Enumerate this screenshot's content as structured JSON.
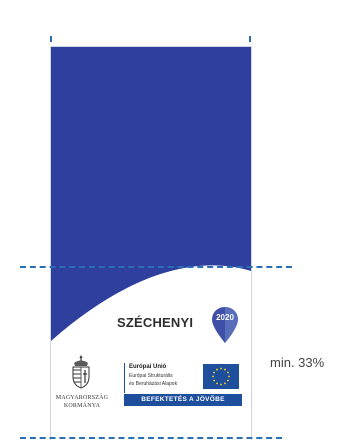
{
  "colors": {
    "poster_blue": "#2e3f9e",
    "guide_blue": "#2a6fb3",
    "eu_blue": "#1d4f9c",
    "eu_stars": "#ffd617",
    "pin_blue": "#3e4fa8",
    "pin_light": "#6f89c8"
  },
  "logos": {
    "szechenyi_label": "SZÉCHENYI",
    "szechenyi_year": "2020",
    "government_line1": "MAGYARORSZÁG",
    "government_line2": "KORMÁNYA",
    "eu_title": "Európai Unió",
    "eu_line2": "Európai Strukturális",
    "eu_line3": "és Beruházási Alapok",
    "invest_banner": "BEFEKTETÉS A JÖVŐBE"
  },
  "annotation": {
    "min_label": "min. 33%"
  },
  "icons": {
    "coat_of_arms": "hungarian-coat-of-arms-icon",
    "eu_flag": "eu-flag-icon",
    "pin": "location-pin-icon"
  }
}
